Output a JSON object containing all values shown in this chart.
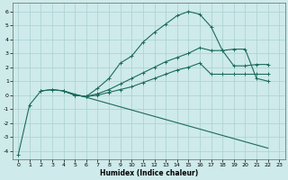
{
  "xlabel": "Humidex (Indice chaleur)",
  "background_color": "#ceeaea",
  "grid_color": "#aacfcf",
  "line_color": "#1a6b5a",
  "xlim": [
    -0.5,
    23.5
  ],
  "ylim": [
    -4.6,
    6.6
  ],
  "xticks": [
    0,
    1,
    2,
    3,
    4,
    5,
    6,
    7,
    8,
    9,
    10,
    11,
    12,
    13,
    14,
    15,
    16,
    17,
    18,
    19,
    20,
    21,
    22,
    23
  ],
  "yticks": [
    -4,
    -3,
    -2,
    -1,
    0,
    1,
    2,
    3,
    4,
    5,
    6
  ],
  "series": [
    {
      "x": [
        0,
        1,
        2,
        3,
        4,
        5,
        6,
        7,
        8,
        9,
        10,
        11,
        12,
        13,
        14,
        15,
        16,
        17,
        18,
        19,
        20,
        21,
        22
      ],
      "y": [
        -4.3,
        -0.7,
        0.3,
        0.4,
        0.3,
        0.0,
        -0.1,
        0.5,
        1.2,
        2.3,
        2.8,
        3.8,
        4.5,
        5.1,
        5.7,
        6.0,
        5.8,
        4.9,
        3.2,
        3.3,
        3.3,
        1.2,
        1.0
      ],
      "markers": true
    },
    {
      "x": [
        2,
        3,
        4,
        5,
        6,
        7,
        8,
        9,
        10,
        11,
        12,
        13,
        14,
        15,
        16,
        17,
        18,
        19,
        20,
        21,
        22
      ],
      "y": [
        0.3,
        0.4,
        0.3,
        0.0,
        -0.1,
        0.1,
        0.4,
        0.8,
        1.2,
        1.6,
        2.0,
        2.4,
        2.7,
        3.0,
        3.4,
        3.2,
        3.2,
        2.1,
        2.1,
        2.2,
        2.2
      ],
      "markers": true
    },
    {
      "x": [
        4,
        5,
        6,
        7,
        8,
        9,
        10,
        11,
        12,
        13,
        14,
        15,
        16,
        17,
        18,
        19,
        20,
        21,
        22
      ],
      "y": [
        0.3,
        0.0,
        -0.1,
        0.0,
        0.2,
        0.4,
        0.6,
        0.9,
        1.2,
        1.5,
        1.8,
        2.0,
        2.3,
        1.5,
        1.5,
        1.5,
        1.5,
        1.5,
        1.5
      ],
      "markers": true
    },
    {
      "x": [
        4,
        22
      ],
      "y": [
        0.3,
        -3.8
      ],
      "markers": false
    }
  ]
}
